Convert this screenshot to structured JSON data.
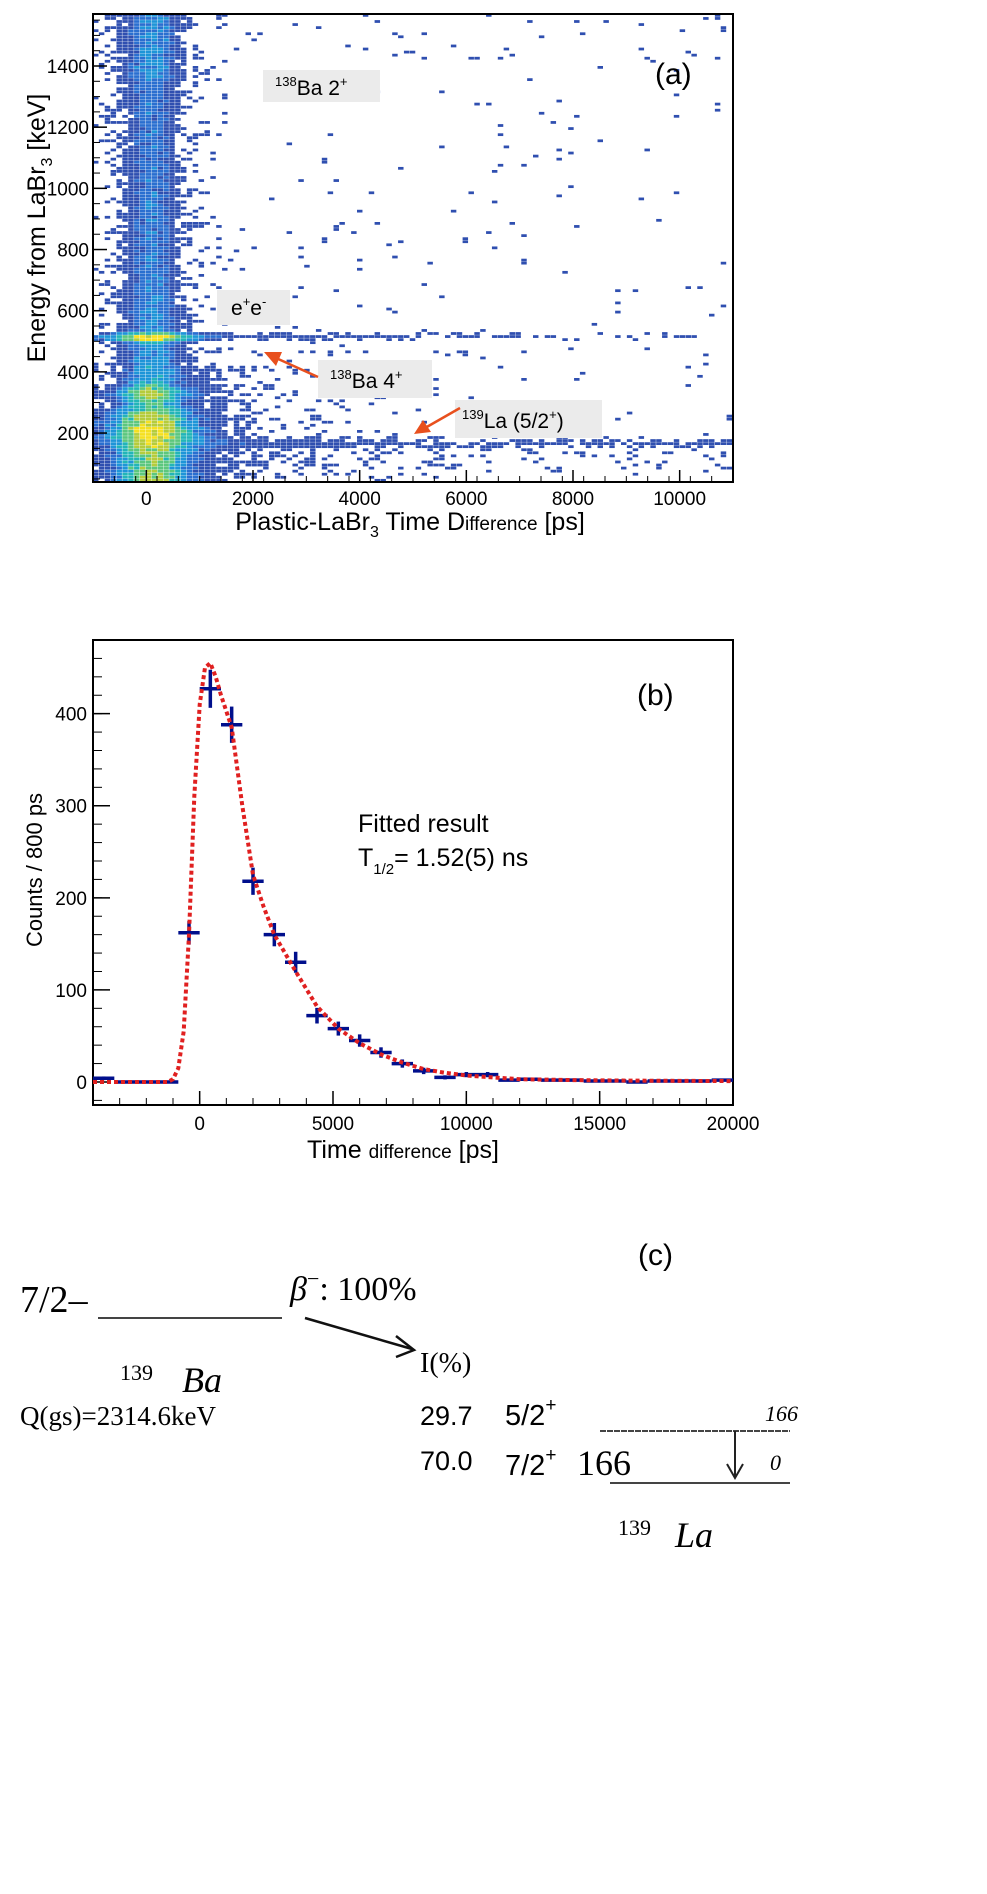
{
  "chart_data": [
    {
      "type": "heatmap",
      "panel_label": "(a)",
      "xlabel": {
        "main": "Plastic-LaBr",
        "sub": "3",
        "mid": " Time D",
        "small": "ifference",
        "end": " [ps]"
      },
      "ylabel": {
        "main": "Energy from LaBr",
        "sub": "3",
        "end": " [keV]"
      },
      "xlim": [
        -1000,
        11000
      ],
      "ylim": [
        40,
        1570
      ],
      "xticks": [
        0,
        2000,
        4000,
        6000,
        8000,
        10000
      ],
      "yticks": [
        200,
        400,
        600,
        800,
        1000,
        1200,
        1400
      ],
      "palette": [
        "#2f4fb0",
        "#2a6fd0",
        "#1e95d8",
        "#22b5b8",
        "#5cc77e",
        "#b5cc3c",
        "#f5e020"
      ],
      "annotations": [
        {
          "id": "ba138-2plus",
          "mass": "138",
          "text": "Ba 2",
          "sup": "+"
        },
        {
          "id": "positron",
          "text1": "e",
          "sup1": "+",
          "text2": "e",
          "sup2": "-"
        },
        {
          "id": "ba138-4plus",
          "mass": "138",
          "text": "Ba 4",
          "sup": "+",
          "arrow_color": "#e8501e"
        },
        {
          "id": "la139-52plus",
          "mass": "139",
          "text": "La (5/2",
          "sup": "+",
          "end": ")",
          "arrow_color": "#e8501e"
        }
      ]
    },
    {
      "type": "scatter",
      "panel_label": "(b)",
      "xlabel": {
        "main": "Time ",
        "small": "difference",
        "end": " [ps]"
      },
      "ylabel": "Counts / 800 ps",
      "xlim": [
        -4000,
        20000
      ],
      "ylim": [
        -25,
        480
      ],
      "xticks": [
        0,
        5000,
        10000,
        15000,
        20000
      ],
      "yticks": [
        0,
        100,
        200,
        300,
        400
      ],
      "bin_width": 800,
      "data_color": "#000f8c",
      "fit_color": "#e02020",
      "x": [
        -3600,
        -2800,
        -2000,
        -1200,
        -400,
        400,
        1200,
        2000,
        2800,
        3600,
        4400,
        5200,
        6000,
        6800,
        7600,
        8400,
        9200,
        10000,
        10800,
        11600,
        12400,
        13200,
        14000,
        14800,
        15600,
        16400,
        17200,
        18000,
        18800,
        19600
      ],
      "y": [
        4,
        0,
        0,
        0,
        162,
        427,
        388,
        218,
        160,
        130,
        72,
        58,
        45,
        32,
        20,
        12,
        5,
        8,
        8,
        2,
        3,
        2,
        2,
        1,
        1,
        0,
        1,
        1,
        1,
        2
      ],
      "fit": {
        "x": [
          -4000,
          -1200,
          -1000,
          -800,
          -600,
          -400,
          -200,
          0,
          200,
          400,
          600,
          800,
          1200,
          1600,
          2000,
          2400,
          2800,
          3600,
          4400,
          5200,
          6000,
          6800,
          7600,
          8400,
          9200,
          10000,
          11000,
          12000,
          14000,
          16000,
          20000
        ],
        "y": [
          0,
          0,
          3,
          15,
          55,
          160,
          310,
          410,
          450,
          455,
          440,
          420,
          385,
          300,
          225,
          190,
          160,
          120,
          82,
          58,
          42,
          30,
          21,
          14,
          10,
          7,
          5,
          3,
          2,
          1.5,
          1
        ]
      },
      "annotation": {
        "line1": "Fitted result",
        "t": "T",
        "sub": "1/2",
        "value": "= 1.52(5) ns"
      }
    }
  ],
  "decay_scheme": {
    "panel_label": "(c)",
    "parent": {
      "spin": "7/2",
      "parity": "–",
      "mass": "139",
      "symbol": "Ba",
      "q_value": "Q(gs)=2314.6keV"
    },
    "beta": {
      "label": "β",
      "sup": "−",
      "value": ": 100%"
    },
    "intensity_header": "I(%)",
    "levels": [
      {
        "intensity": "29.7",
        "spin": "5/2",
        "parity": "+",
        "energy": "166"
      },
      {
        "intensity": "70.0",
        "spin": "7/2",
        "parity": "+",
        "energy": "0"
      }
    ],
    "gamma": {
      "energy": "166"
    },
    "daughter": {
      "mass": "139",
      "symbol": "La"
    }
  }
}
